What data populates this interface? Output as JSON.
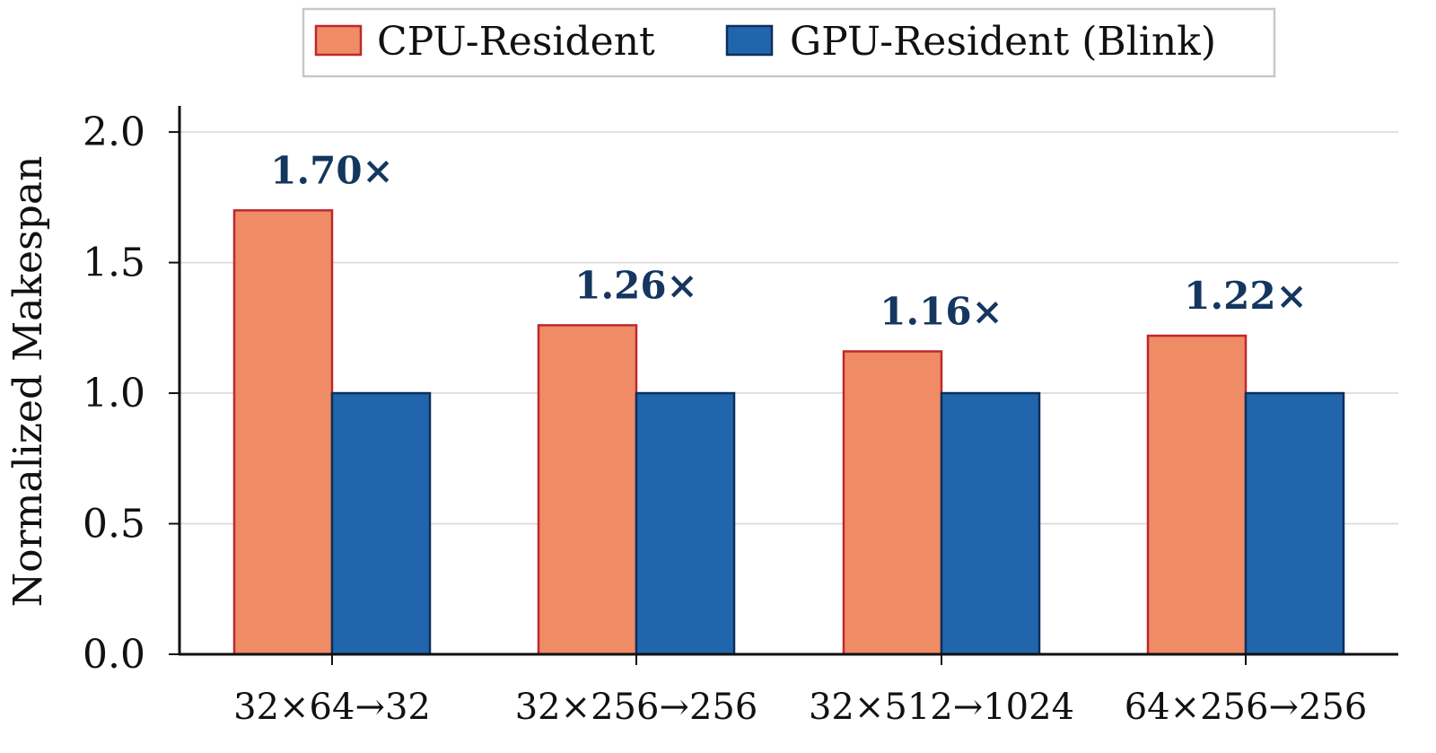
{
  "chart_data": {
    "type": "bar",
    "title": "",
    "xlabel": "",
    "ylabel": "Normalized Makespan",
    "ylim": [
      0,
      2.1
    ],
    "yticks": [
      "0.0",
      "0.5",
      "1.0",
      "1.5",
      "2.0"
    ],
    "ytick_values": [
      0,
      0.5,
      1.0,
      1.5,
      2.0
    ],
    "grid": "horizontal",
    "legend_position": "top-center",
    "categories": [
      "32×64→32",
      "32×256→256",
      "32×512→1024",
      "64×256→256"
    ],
    "series": [
      {
        "name": "CPU-Resident",
        "values": [
          1.7,
          1.26,
          1.16,
          1.22
        ],
        "color": "#ef8c66",
        "edge_color": "#c0272d"
      },
      {
        "name": "GPU-Resident (Blink)",
        "values": [
          1.0,
          1.0,
          1.0,
          1.0
        ],
        "color": "#2166ac",
        "edge_color": "#0d2f5c"
      }
    ],
    "annotations": [
      "1.70×",
      "1.26×",
      "1.16×",
      "1.22×"
    ],
    "annotation_color": "#14365f"
  }
}
